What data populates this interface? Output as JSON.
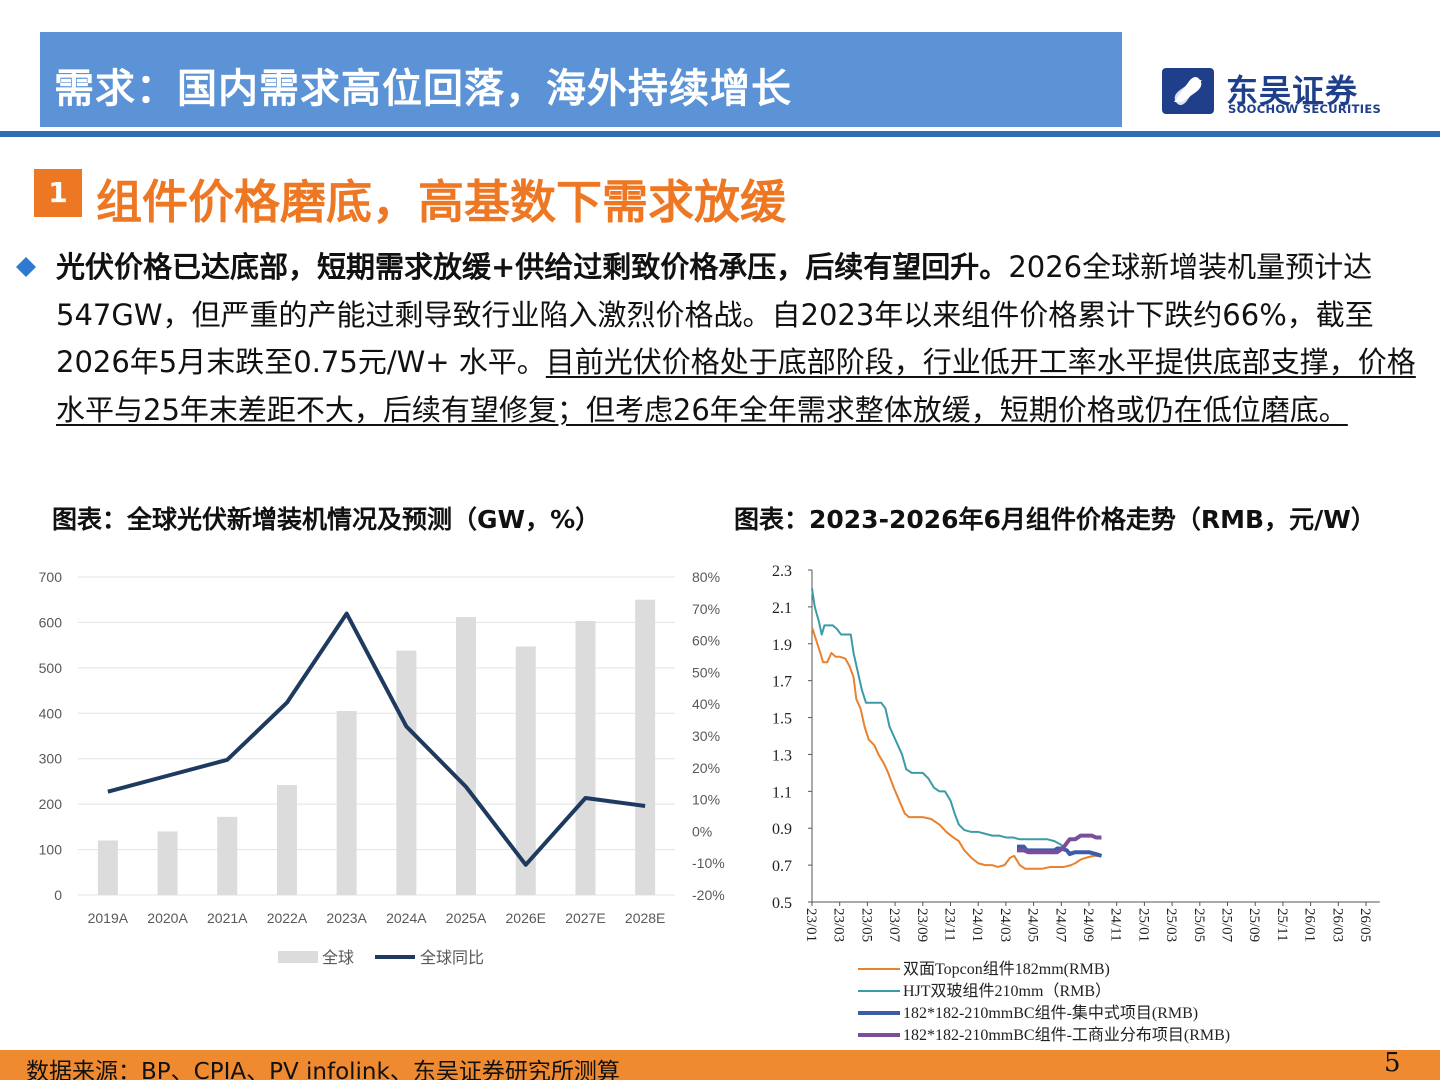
{
  "header": {
    "title": "需求：国内需求高位回落，海外持续增长"
  },
  "logo": {
    "name_cn": "东吴证券",
    "name_en": "SOOCHOW SECURITIES",
    "icon": "soochow-logo-icon",
    "color": "#1f3f8a"
  },
  "section": {
    "number": "1",
    "title": "组件价格磨底，高基数下需求放缓"
  },
  "bullet": {
    "icon": "diamond-bullet-icon",
    "bold": "光伏价格已达底部，短期需求放缓+供给过剩致价格承压，后续有望回升。",
    "plain": "2026全球新增装机量预计达547GW，但严重的产能过剩导致行业陷入激烈价格战。自2023年以来组件价格累计下跌约66%，截至2026年5月末跌至0.75元/W+ 水平。",
    "underlined": "目前光伏价格处于底部阶段，行业低开工率水平提供底部支撑，价格水平与25年末差距不大，后续有望修复；但考虑26年全年需求整体放缓，短期价格或仍在低位磨底。"
  },
  "footer": {
    "source": "数据来源：BP、CPIA、PV infolink、东吴证券研究所测算",
    "page": "5"
  },
  "colors": {
    "header": "#5b93d6",
    "accent_orange": "#ee7724",
    "navy": "#1f3a5f"
  },
  "chart_data": [
    {
      "type": "bar",
      "title": "图表：全球光伏新增装机情况及预测（GW，%）",
      "categories": [
        "2019A",
        "2020A",
        "2021A",
        "2022A",
        "2023A",
        "2024A",
        "2025A",
        "2026E",
        "2027E",
        "2028E"
      ],
      "series": [
        {
          "name": "全球",
          "type": "bar",
          "axis": "left",
          "color": "#dcdcdc",
          "values": [
            120,
            140,
            172,
            242,
            405,
            538,
            612,
            547,
            603,
            650
          ]
        },
        {
          "name": "全球同比",
          "type": "line",
          "axis": "right",
          "color": "#1f3a5f",
          "values": [
            12.5,
            17.5,
            22.5,
            40.5,
            68.5,
            33,
            14,
            -10.5,
            10.5,
            8
          ]
        }
      ],
      "ylim": [
        0,
        700
      ],
      "y_ticks": [
        "0",
        "100",
        "200",
        "300",
        "400",
        "500",
        "600",
        "700"
      ],
      "y2lim": [
        -20,
        80
      ],
      "y2_ticks": [
        "-20%",
        "-10%",
        "0%",
        "10%",
        "20%",
        "30%",
        "40%",
        "50%",
        "60%",
        "70%",
        "80%"
      ],
      "grid": true,
      "legend": "bottom"
    },
    {
      "type": "line",
      "title": "图表：2023-2026年6月组件价格走势（RMB，元/W）",
      "x_ticks": [
        "23/01",
        "23/03",
        "23/05",
        "23/07",
        "23/09",
        "23/11",
        "24/01",
        "24/03",
        "24/05",
        "24/07",
        "24/09",
        "24/11",
        "25/01",
        "25/03",
        "25/05",
        "25/07",
        "25/09",
        "25/11",
        "26/01",
        "26/03",
        "26/05"
      ],
      "ylim": [
        0.5,
        2.3
      ],
      "y_ticks": [
        "0.5",
        "0.7",
        "0.9",
        "1.1",
        "1.3",
        "1.5",
        "1.7",
        "1.9",
        "2.1",
        "2.3"
      ],
      "grid": false,
      "legend": "bottom",
      "series": [
        {
          "name": "双面Topcon组件182mm(RMB)",
          "color": "#e8822c",
          "width": 2,
          "points": [
            [
              0,
              1.99
            ],
            [
              0.3,
              1.92
            ],
            [
              0.6,
              1.85
            ],
            [
              0.8,
              1.8
            ],
            [
              1.1,
              1.8
            ],
            [
              1.4,
              1.85
            ],
            [
              1.7,
              1.83
            ],
            [
              2.0,
              1.83
            ],
            [
              2.4,
              1.82
            ],
            [
              2.7,
              1.78
            ],
            [
              3.0,
              1.72
            ],
            [
              3.2,
              1.6
            ],
            [
              3.5,
              1.55
            ],
            [
              3.8,
              1.45
            ],
            [
              4.1,
              1.38
            ],
            [
              4.5,
              1.35
            ],
            [
              4.8,
              1.3
            ],
            [
              5.2,
              1.25
            ],
            [
              5.5,
              1.2
            ],
            [
              5.9,
              1.12
            ],
            [
              6.3,
              1.05
            ],
            [
              6.7,
              0.98
            ],
            [
              7.0,
              0.96
            ],
            [
              7.5,
              0.96
            ],
            [
              8.0,
              0.96
            ],
            [
              8.6,
              0.95
            ],
            [
              9.2,
              0.92
            ],
            [
              9.7,
              0.88
            ],
            [
              10.2,
              0.85
            ],
            [
              10.6,
              0.83
            ],
            [
              11.0,
              0.78
            ],
            [
              11.5,
              0.74
            ],
            [
              12.0,
              0.71
            ],
            [
              12.5,
              0.7
            ],
            [
              13.0,
              0.7
            ],
            [
              13.4,
              0.69
            ],
            [
              13.9,
              0.7
            ],
            [
              14.3,
              0.74
            ],
            [
              14.6,
              0.75
            ],
            [
              15.0,
              0.7
            ],
            [
              15.4,
              0.68
            ],
            [
              16.0,
              0.68
            ],
            [
              16.6,
              0.68
            ],
            [
              17.2,
              0.69
            ],
            [
              17.7,
              0.69
            ],
            [
              18.2,
              0.69
            ],
            [
              18.7,
              0.7
            ],
            [
              19.0,
              0.71
            ],
            [
              19.4,
              0.73
            ],
            [
              19.8,
              0.74
            ],
            [
              20.3,
              0.75
            ],
            [
              20.9,
              0.75
            ]
          ]
        },
        {
          "name": "HJT双玻组件210mm（RMB）",
          "color": "#3b9ba8",
          "width": 2,
          "points": [
            [
              0,
              2.2
            ],
            [
              0.2,
              2.1
            ],
            [
              0.5,
              2.02
            ],
            [
              0.7,
              1.95
            ],
            [
              0.9,
              2.0
            ],
            [
              1.2,
              2.0
            ],
            [
              1.5,
              2.0
            ],
            [
              1.8,
              1.98
            ],
            [
              2.1,
              1.95
            ],
            [
              2.5,
              1.95
            ],
            [
              2.8,
              1.95
            ],
            [
              3.0,
              1.85
            ],
            [
              3.3,
              1.75
            ],
            [
              3.6,
              1.65
            ],
            [
              3.9,
              1.58
            ],
            [
              4.3,
              1.58
            ],
            [
              4.7,
              1.58
            ],
            [
              5.0,
              1.58
            ],
            [
              5.3,
              1.55
            ],
            [
              5.6,
              1.45
            ],
            [
              5.9,
              1.4
            ],
            [
              6.2,
              1.35
            ],
            [
              6.5,
              1.3
            ],
            [
              6.8,
              1.22
            ],
            [
              7.2,
              1.2
            ],
            [
              7.6,
              1.2
            ],
            [
              8.0,
              1.2
            ],
            [
              8.4,
              1.17
            ],
            [
              8.8,
              1.12
            ],
            [
              9.2,
              1.1
            ],
            [
              9.6,
              1.1
            ],
            [
              10.0,
              1.05
            ],
            [
              10.3,
              0.98
            ],
            [
              10.6,
              0.92
            ],
            [
              11.0,
              0.89
            ],
            [
              11.5,
              0.88
            ],
            [
              12.0,
              0.88
            ],
            [
              12.5,
              0.87
            ],
            [
              13.0,
              0.86
            ],
            [
              13.5,
              0.86
            ],
            [
              14.0,
              0.85
            ],
            [
              14.5,
              0.85
            ],
            [
              15.0,
              0.84
            ],
            [
              15.5,
              0.84
            ],
            [
              16.0,
              0.84
            ],
            [
              16.5,
              0.84
            ],
            [
              17.0,
              0.84
            ],
            [
              17.5,
              0.83
            ],
            [
              18.0,
              0.81
            ],
            [
              18.5,
              0.77
            ],
            [
              19.0,
              0.77
            ],
            [
              19.5,
              0.77
            ],
            [
              20.0,
              0.77
            ],
            [
              20.4,
              0.76
            ],
            [
              20.9,
              0.75
            ]
          ]
        },
        {
          "name": "182*182-210mmBC组件-集中式项目(RMB)",
          "color": "#3d5ca8",
          "width": 4,
          "points": [
            [
              14.8,
              0.8
            ],
            [
              15.3,
              0.8
            ],
            [
              15.5,
              0.78
            ],
            [
              16.0,
              0.78
            ],
            [
              16.5,
              0.78
            ],
            [
              17.0,
              0.78
            ],
            [
              17.5,
              0.78
            ],
            [
              17.7,
              0.79
            ],
            [
              18.0,
              0.79
            ],
            [
              18.4,
              0.78
            ],
            [
              18.6,
              0.76
            ],
            [
              19.0,
              0.77
            ],
            [
              19.5,
              0.77
            ],
            [
              20.0,
              0.77
            ],
            [
              20.5,
              0.76
            ],
            [
              20.9,
              0.75
            ]
          ]
        },
        {
          "name": "182*182-210mmBC组件-工商业分布项目(RMB)",
          "color": "#7a4e9a",
          "width": 4,
          "points": [
            [
              14.8,
              0.78
            ],
            [
              15.3,
              0.78
            ],
            [
              15.6,
              0.77
            ],
            [
              16.0,
              0.77
            ],
            [
              16.5,
              0.77
            ],
            [
              17.0,
              0.77
            ],
            [
              17.5,
              0.77
            ],
            [
              17.7,
              0.77
            ],
            [
              18.1,
              0.79
            ],
            [
              18.4,
              0.82
            ],
            [
              18.6,
              0.84
            ],
            [
              19.0,
              0.84
            ],
            [
              19.4,
              0.86
            ],
            [
              19.8,
              0.86
            ],
            [
              20.2,
              0.86
            ],
            [
              20.5,
              0.85
            ],
            [
              20.9,
              0.85
            ]
          ]
        }
      ]
    }
  ]
}
